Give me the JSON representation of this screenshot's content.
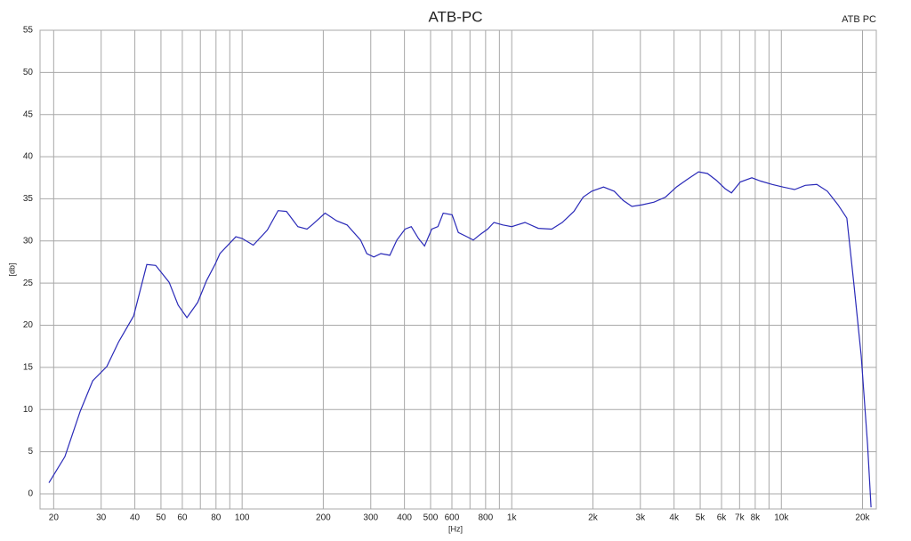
{
  "chart_data": {
    "type": "line",
    "title": "ATB-PC",
    "xlabel": "[Hz]",
    "ylabel": "[db]",
    "xscale": "log",
    "grid": true,
    "legend_position": "upper right",
    "series": [
      {
        "name": "ATB PC",
        "color": "#2a2ab8",
        "x": [
          19.2,
          22,
          25.1,
          27.9,
          31.5,
          34.8,
          39.6,
          44.3,
          47.8,
          53.6,
          57.9,
          62.4,
          68.4,
          73.8,
          79.6,
          82.7,
          94.8,
          100,
          110,
          124,
          136,
          146,
          161,
          174,
          183,
          203,
          224,
          245,
          275,
          290,
          308,
          327,
          353,
          375,
          402,
          424,
          451,
          475,
          505,
          532,
          557,
          601,
          634,
          683,
          720,
          766,
          814,
          859,
          927,
          1000,
          1120,
          1255,
          1406,
          1540,
          1700,
          1840,
          1980,
          2190,
          2400,
          2590,
          2790,
          3050,
          3370,
          3720,
          4080,
          4470,
          4930,
          5320,
          5740,
          6190,
          6530,
          7040,
          7770,
          8380,
          9250,
          10140,
          11200,
          12260,
          13530,
          14820,
          16220,
          17500,
          18600,
          19780,
          20880,
          21520
        ],
        "values": [
          1.3,
          4.4,
          9.8,
          13.4,
          15.1,
          18,
          21.1,
          27.2,
          27.1,
          25.1,
          22.4,
          20.9,
          22.7,
          25.3,
          27.3,
          28.5,
          30.5,
          30.3,
          29.5,
          31.3,
          33.6,
          33.5,
          31.7,
          31.4,
          32,
          33.3,
          32.4,
          31.9,
          30.1,
          28.5,
          28.1,
          28.5,
          28.3,
          30.1,
          31.4,
          31.7,
          30.3,
          29.4,
          31.4,
          31.7,
          33.3,
          33.1,
          31,
          30.5,
          30.1,
          30.8,
          31.4,
          32.2,
          31.9,
          31.7,
          32.2,
          31.5,
          31.4,
          32.2,
          33.5,
          35.2,
          35.9,
          36.4,
          35.9,
          34.8,
          34.1,
          34.3,
          34.6,
          35.2,
          36.4,
          37.3,
          38.2,
          38,
          37.2,
          36.2,
          35.7,
          37,
          37.5,
          37.1,
          36.7,
          36.4,
          36.1,
          36.6,
          36.7,
          35.9,
          34.3,
          32.7,
          24.8,
          16.4,
          5.8,
          -1.6
        ]
      }
    ],
    "xlim": [
      17.8,
      22500
    ],
    "ylim": [
      -1.8,
      55
    ],
    "xticks": [
      20,
      30,
      40,
      50,
      60,
      80,
      100,
      200,
      300,
      400,
      500,
      600,
      800,
      {
        "value": 1000,
        "label": "1k"
      },
      {
        "value": 2000,
        "label": "2k"
      },
      {
        "value": 3000,
        "label": "3k"
      },
      {
        "value": 4000,
        "label": "4k"
      },
      {
        "value": 5000,
        "label": "5k"
      },
      {
        "value": 6000,
        "label": "6k"
      },
      {
        "value": 7000,
        "label": "7k"
      },
      {
        "value": 8000,
        "label": "8k"
      },
      {
        "value": 10000,
        "label": "10k"
      },
      {
        "value": 20000,
        "label": "20k"
      }
    ],
    "minor_gridlines": [
      70,
      90,
      700,
      900,
      9000
    ],
    "yticks": [
      0,
      5,
      10,
      15,
      20,
      25,
      30,
      35,
      40,
      45,
      50,
      55
    ]
  }
}
